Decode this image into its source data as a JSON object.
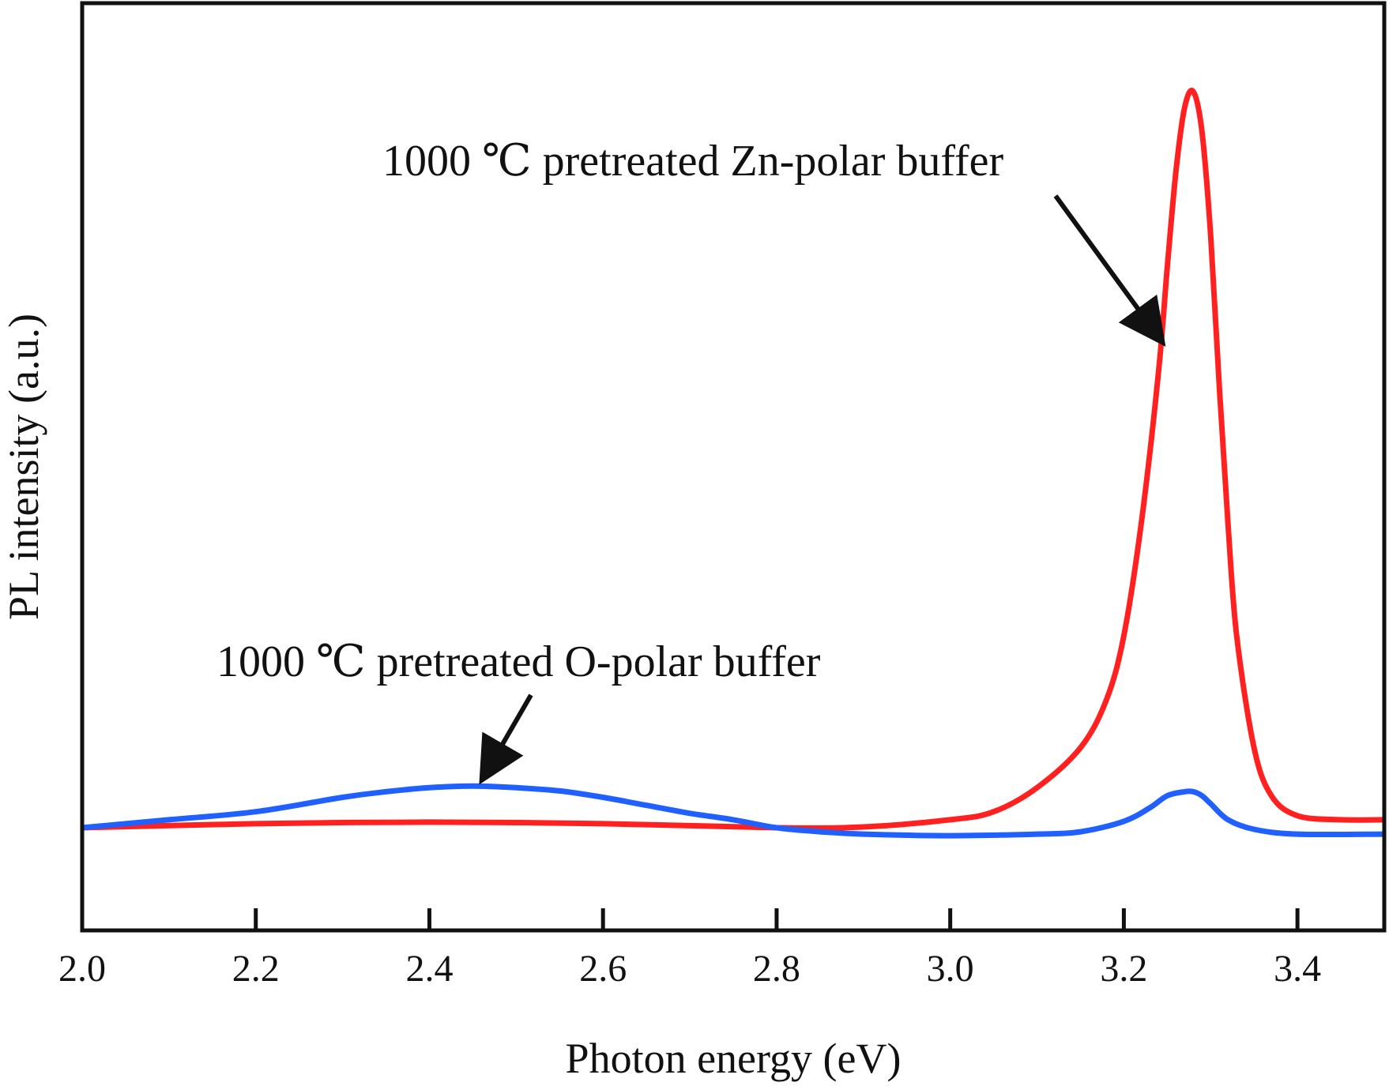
{
  "chart_data": {
    "type": "line",
    "title": "",
    "xlabel": "Photon energy (eV)",
    "ylabel": "PL intensity (a.u.)",
    "xlim": [
      2.0,
      3.5
    ],
    "ylim": [
      -0.12,
      1.0
    ],
    "x_ticks": [
      "2.0",
      "2.2",
      "2.4",
      "2.6",
      "2.8",
      "3.0",
      "3.2",
      "3.4"
    ],
    "y_ticks_labeled": false,
    "grid": false,
    "legend": "none",
    "series": [
      {
        "color": "#ff2020",
        "x": [
          2.0,
          2.2,
          2.4,
          2.6,
          2.8,
          2.9,
          3.0,
          3.05,
          3.1,
          3.15,
          3.18,
          3.2,
          3.22,
          3.24,
          3.25,
          3.26,
          3.27,
          3.28,
          3.29,
          3.3,
          3.31,
          3.32,
          3.33,
          3.35,
          3.37,
          3.4,
          3.45,
          3.5
        ],
        "y": [
          0.0,
          0.005,
          0.007,
          0.005,
          0.0,
          0.001,
          0.01,
          0.02,
          0.05,
          0.1,
          0.16,
          0.24,
          0.38,
          0.57,
          0.7,
          0.82,
          0.9,
          0.92,
          0.87,
          0.74,
          0.55,
          0.38,
          0.24,
          0.1,
          0.04,
          0.015,
          0.01,
          0.01
        ]
      },
      {
        "color": "#2060ff",
        "x": [
          2.0,
          2.1,
          2.2,
          2.3,
          2.35,
          2.4,
          2.45,
          2.5,
          2.55,
          2.6,
          2.65,
          2.7,
          2.75,
          2.8,
          2.85,
          2.9,
          3.0,
          3.1,
          3.15,
          3.2,
          3.23,
          3.25,
          3.27,
          3.28,
          3.29,
          3.3,
          3.32,
          3.35,
          3.4,
          3.5
        ],
        "y": [
          0.0,
          0.01,
          0.02,
          0.038,
          0.045,
          0.05,
          0.052,
          0.05,
          0.046,
          0.038,
          0.028,
          0.018,
          0.01,
          0.0,
          -0.005,
          -0.008,
          -0.01,
          -0.008,
          -0.005,
          0.008,
          0.025,
          0.04,
          0.045,
          0.045,
          0.04,
          0.03,
          0.01,
          -0.002,
          -0.008,
          -0.008
        ]
      }
    ],
    "annotations": [
      {
        "text": "1000 ℃ pretreated Zn-polar buffer",
        "arrow_to": [
          3.245,
          0.6
        ]
      },
      {
        "text": "1000 ℃ pretreated O-polar buffer",
        "arrow_to": [
          2.46,
          0.053
        ]
      }
    ]
  }
}
